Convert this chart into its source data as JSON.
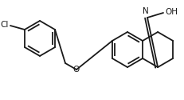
{
  "bg_color": "#ffffff",
  "line_color": "#1a1a1a",
  "line_width": 1.3,
  "figsize": [
    2.32,
    1.25
  ],
  "dpi": 100,
  "xlim": [
    0,
    232
  ],
  "ylim": [
    0,
    125
  ]
}
